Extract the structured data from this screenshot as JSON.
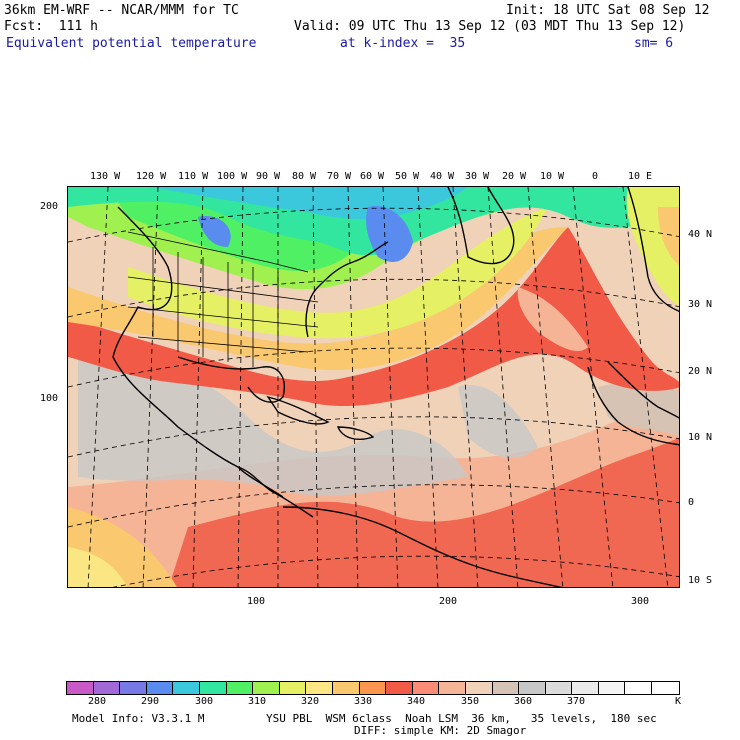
{
  "header": {
    "model_title": "36km EM-WRF -- NCAR/MMM for TC",
    "init": "Init: 18 UTC Sat 08 Sep 12",
    "forecast": "Fcst:  111 h",
    "valid": "Valid: 09 UTC Thu 13 Sep 12 (03 MDT Thu 13 Sep 12)",
    "field": "Equivalent potential temperature",
    "level": "at k-index =  35",
    "smoothing": "sm= 6"
  },
  "map": {
    "top_lon_labels": [
      "130 W",
      "120 W",
      "110 W",
      "100 W",
      "90 W",
      "80 W",
      "70 W",
      "60 W",
      "50 W",
      "40 W",
      "30 W",
      "20 W",
      "10 W",
      "0",
      "10 E"
    ],
    "right_lat_labels": [
      "40 N",
      "30 N",
      "20 N",
      "10 N",
      "0",
      "10 S"
    ],
    "left_grid_labels": [
      "200",
      "100"
    ],
    "bottom_grid_labels": [
      "100",
      "200",
      "300"
    ]
  },
  "colorbar": {
    "colors": [
      "#c85ac8",
      "#a068d8",
      "#7878e6",
      "#5a8cf0",
      "#3cc8dc",
      "#32e6a0",
      "#50f064",
      "#a0f050",
      "#e6f064",
      "#fae682",
      "#fac86e",
      "#fa9650",
      "#f05a46",
      "#fa8c78",
      "#f5b496",
      "#f0d2b9",
      "#d7c3b4",
      "#c8c8c8",
      "#dcdcdc",
      "#ebebeb",
      "#f5f5f5",
      "#ffffff",
      "#ffffff"
    ],
    "labels": [
      "280",
      "290",
      "300",
      "310",
      "320",
      "330",
      "340",
      "350",
      "360",
      "370"
    ],
    "unit": "K"
  },
  "footer": {
    "model_info": "Model Info: V3.3.1 M",
    "physics": "YSU PBL  WSM 6class  Noah LSM  36 km,   35 levels,  180 sec",
    "diffusion": "DIFF: simple KM: 2D Smagor"
  }
}
